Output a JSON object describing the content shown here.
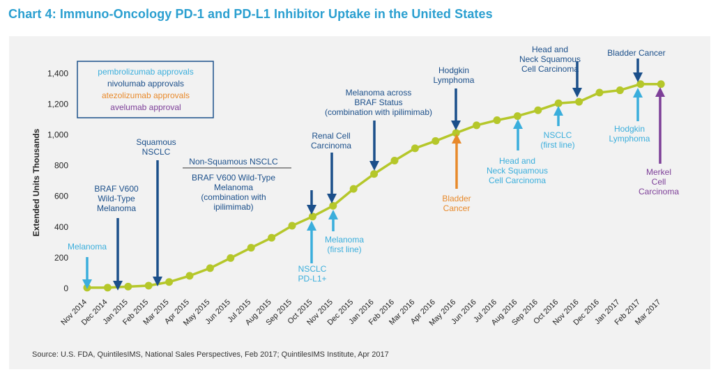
{
  "title": "Chart 4: Immuno-Oncology PD-1 and PD-L1 Inhibitor Uptake in the United States",
  "source": "Source: U.S. FDA, QuintilesIMS, National Sales Perspectives, Feb 2017; QuintilesIMS Institute, Apr 2017",
  "colors": {
    "title": "#2a9fd0",
    "line": "#b5c72a",
    "panel": "#f2f2f2",
    "pembrolizumab": "#3aaedc",
    "nivolumab": "#1b4f8a",
    "atezolizumab": "#e8892a",
    "avelumab": "#7d3f98"
  },
  "legend": {
    "items": [
      {
        "label": "pembrolizumab approvals",
        "color": "#3aaedc"
      },
      {
        "label": "nivolumab approvals",
        "color": "#1b4f8a"
      },
      {
        "label": "atezolizumab approvals",
        "color": "#e8892a"
      },
      {
        "label": "avelumab approval",
        "color": "#7d3f98"
      }
    ]
  },
  "chart_data": {
    "type": "line",
    "ylabel": "Extended Units Thousands",
    "xlabel": "",
    "ylim": [
      0,
      1400
    ],
    "yticks": [
      0,
      200,
      400,
      600,
      800,
      "1,000",
      "1,200",
      "1,400"
    ],
    "grid": false,
    "categories": [
      "Nov 2014",
      "Dec 2014",
      "Jan 2015",
      "Feb 2015",
      "Mar 2015",
      "Apr 2015",
      "May 2015",
      "Jun 2015",
      "Jul 2015",
      "Aug 2015",
      "Sep 2015",
      "Oct 2015",
      "Nov 2015",
      "Dec 2015",
      "Jan 2016",
      "Feb 2016",
      "Mar 2016",
      "Apr 2016",
      "May 2016",
      "Jun 2016",
      "Jul 2016",
      "Aug 2016",
      "Sep 2016",
      "Oct 2016",
      "Nov 2016",
      "Dec 2016",
      "Jan 2017",
      "Feb 2017",
      "Mar 2017"
    ],
    "series": [
      {
        "values": [
          5,
          5,
          12,
          18,
          42,
          82,
          132,
          198,
          265,
          330,
          408,
          468,
          538,
          648,
          745,
          832,
          912,
          960,
          1012,
          1062,
          1095,
          1122,
          1160,
          1205,
          1215,
          1275,
          1290,
          1330,
          1330
        ]
      }
    ],
    "annotations": [
      {
        "text": [
          "Melanoma"
        ],
        "drug": "pembrolizumab",
        "x": "Nov 2014",
        "direction": "down",
        "position": "above"
      },
      {
        "text": [
          "BRAF V600",
          "Wild-Type",
          "Melanoma"
        ],
        "drug": "nivolumab",
        "x": "Dec 2014",
        "direction": "down",
        "position": "above"
      },
      {
        "text": [
          "Squamous",
          "NSCLC"
        ],
        "drug": "nivolumab",
        "x": "Mar 2015",
        "direction": "down",
        "position": "above"
      },
      {
        "text": [
          "Non-Squamous NSCLC"
        ],
        "drug": "nivolumab",
        "x": "Oct 2015",
        "direction": "down",
        "position": "above",
        "bracket": true
      },
      {
        "text": [
          "BRAF V600 Wild-Type",
          "Melanoma",
          "(combination with",
          "ipilimimab)"
        ],
        "drug": "nivolumab",
        "x": "Oct 2015",
        "position": "above-sub"
      },
      {
        "text": [
          "NSCLC",
          "PD-L1+"
        ],
        "drug": "pembrolizumab",
        "x": "Oct 2015",
        "direction": "up",
        "position": "below"
      },
      {
        "text": [
          "Renal Cell",
          "Carcinoma"
        ],
        "drug": "nivolumab",
        "x": "Nov 2015",
        "direction": "down",
        "position": "above"
      },
      {
        "text": [
          "Melanoma",
          "(first line)"
        ],
        "drug": "pembrolizumab",
        "x": "Nov 2015",
        "direction": "up",
        "position": "below"
      },
      {
        "text": [
          "Melanoma across",
          "BRAF Status",
          "(combination with ipilimimab)"
        ],
        "drug": "nivolumab",
        "x": "Jan 2016",
        "direction": "down",
        "position": "above"
      },
      {
        "text": [
          "Hodgkin",
          "Lymphoma"
        ],
        "drug": "nivolumab",
        "x": "May 2016",
        "direction": "down",
        "position": "above"
      },
      {
        "text": [
          "Bladder",
          "Cancer"
        ],
        "drug": "atezolizumab",
        "x": "May 2016",
        "direction": "up",
        "position": "below"
      },
      {
        "text": [
          "Head and",
          "Neck Squamous",
          "Cell Carcinoma"
        ],
        "drug": "pembrolizumab",
        "x": "Aug 2016",
        "direction": "up",
        "position": "below"
      },
      {
        "text": [
          "NSCLC",
          "(first line)"
        ],
        "drug": "pembrolizumab",
        "x": "Oct 2016",
        "direction": "up",
        "position": "below"
      },
      {
        "text": [
          "Head and",
          "Neck Squamous",
          "Cell Carcinoma"
        ],
        "drug": "nivolumab",
        "x": "Nov 2016",
        "direction": "down",
        "position": "above"
      },
      {
        "text": [
          "Bladder Cancer"
        ],
        "drug": "nivolumab",
        "x": "Feb 2017",
        "direction": "down",
        "position": "above"
      },
      {
        "text": [
          "Hodgkin",
          "Lymphoma"
        ],
        "drug": "pembrolizumab",
        "x": "Feb 2017",
        "direction": "up",
        "position": "below"
      },
      {
        "text": [
          "Merkel",
          "Cell",
          "Carcinoma"
        ],
        "drug": "avelumab",
        "x": "Mar 2017",
        "direction": "up",
        "position": "below"
      }
    ]
  }
}
